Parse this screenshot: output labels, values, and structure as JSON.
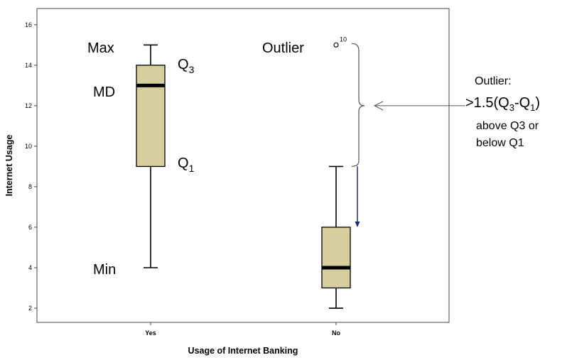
{
  "chart_data": {
    "type": "box",
    "xlabel": "Usage of Internet Banking",
    "ylabel": "Internet Usage",
    "ylim": [
      1.3,
      16.8
    ],
    "yticks": [
      2,
      4,
      6,
      8,
      10,
      12,
      14,
      16
    ],
    "categories": [
      "Yes",
      "No"
    ],
    "boxes": [
      {
        "category": "Yes",
        "min": 4,
        "q1": 9,
        "median": 13,
        "q3": 14,
        "max": 15,
        "outliers": []
      },
      {
        "category": "No",
        "min": 2,
        "q1": 3,
        "median": 4,
        "q3": 6,
        "max": 9,
        "outliers": [
          {
            "value": 15,
            "label": "10"
          }
        ]
      }
    ],
    "box_color": "#d6cf9d",
    "annotations": {
      "max": "Max",
      "q3": "Q",
      "q3_sub": "3",
      "md": "MD",
      "q1": "Q",
      "q1_sub": "1",
      "min": "Min",
      "outlier": "Outlier",
      "rule_title": "Outlier:",
      "rule_formula_a": ">1.5(Q",
      "rule_formula_sub1": "3",
      "rule_formula_b": "-Q",
      "rule_formula_sub2": "1",
      "rule_formula_c": ")",
      "rule_line2": "above Q3 or",
      "rule_line3": "below Q1"
    }
  }
}
